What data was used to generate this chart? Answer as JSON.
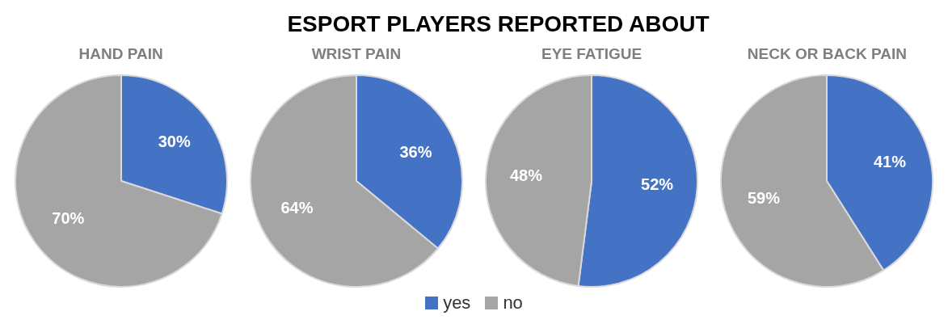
{
  "chart_data": [
    {
      "type": "other",
      "title": "ESPORT PLAYERS REPORTED ABOUT"
    },
    {
      "type": "pie",
      "title": "HAND PAIN",
      "categories": [
        "yes",
        "no"
      ],
      "values": [
        30,
        70
      ],
      "value_labels": [
        "30%",
        "70%"
      ],
      "colors": [
        "#4472c4",
        "#a5a5a5"
      ],
      "legend": "bottom"
    },
    {
      "type": "pie",
      "title": "WRIST PAIN",
      "categories": [
        null,
        null
      ],
      "values": [
        36,
        64
      ],
      "value_labels": [
        "36%",
        "64%"
      ],
      "colors": [
        "#4472c4",
        "#a5a5a5"
      ]
    },
    {
      "type": "pie",
      "title": "EYE FATIGUE",
      "categories": [
        null,
        null
      ],
      "values": [
        52,
        48
      ],
      "value_labels": [
        "52%",
        "48%"
      ],
      "colors": [
        "#4472c4",
        "#a5a5a5"
      ]
    },
    {
      "type": "pie",
      "title": "NECK OR BACK PAIN",
      "categories": [
        null,
        null
      ],
      "values": [
        41,
        59
      ],
      "value_labels": [
        "41%",
        "59%"
      ],
      "colors": [
        "#4472c4",
        "#a5a5a5"
      ]
    }
  ]
}
